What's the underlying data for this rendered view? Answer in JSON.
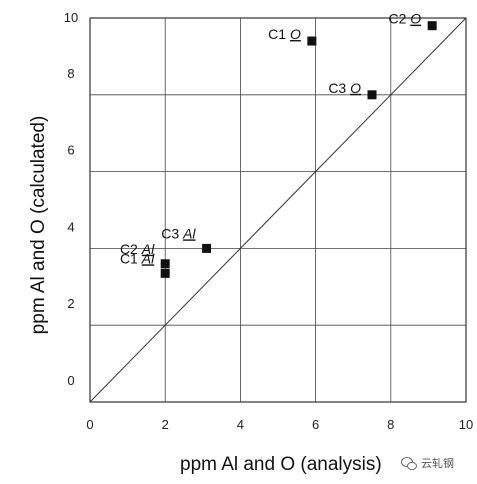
{
  "chart_data": {
    "type": "scatter",
    "xlabel": "ppm Al and O (analysis)",
    "ylabel": "ppm Al and O (calculated)",
    "xlim": [
      0,
      10
    ],
    "ylim": [
      0,
      10
    ],
    "x_ticks": [
      "0",
      "2",
      "4",
      "6",
      "8",
      "10"
    ],
    "y_ticks": [
      "0",
      "2",
      "4",
      "6",
      "8",
      "10"
    ],
    "grid": true,
    "reference_line": "y = x",
    "points": [
      {
        "case": "C1",
        "element": "O",
        "x": 5.9,
        "y": 9.4
      },
      {
        "case": "C2",
        "element": "O",
        "x": 9.1,
        "y": 9.8
      },
      {
        "case": "C3",
        "element": "O",
        "x": 7.5,
        "y": 8.0
      },
      {
        "case": "C1",
        "element": "Al",
        "x": 2.0,
        "y": 3.35
      },
      {
        "case": "C2",
        "element": "Al",
        "x": 2.0,
        "y": 3.6
      },
      {
        "case": "C3",
        "element": "Al",
        "x": 3.1,
        "y": 4.0
      }
    ]
  },
  "watermark": {
    "icon": "wechat-icon",
    "text": "云轧钢"
  }
}
